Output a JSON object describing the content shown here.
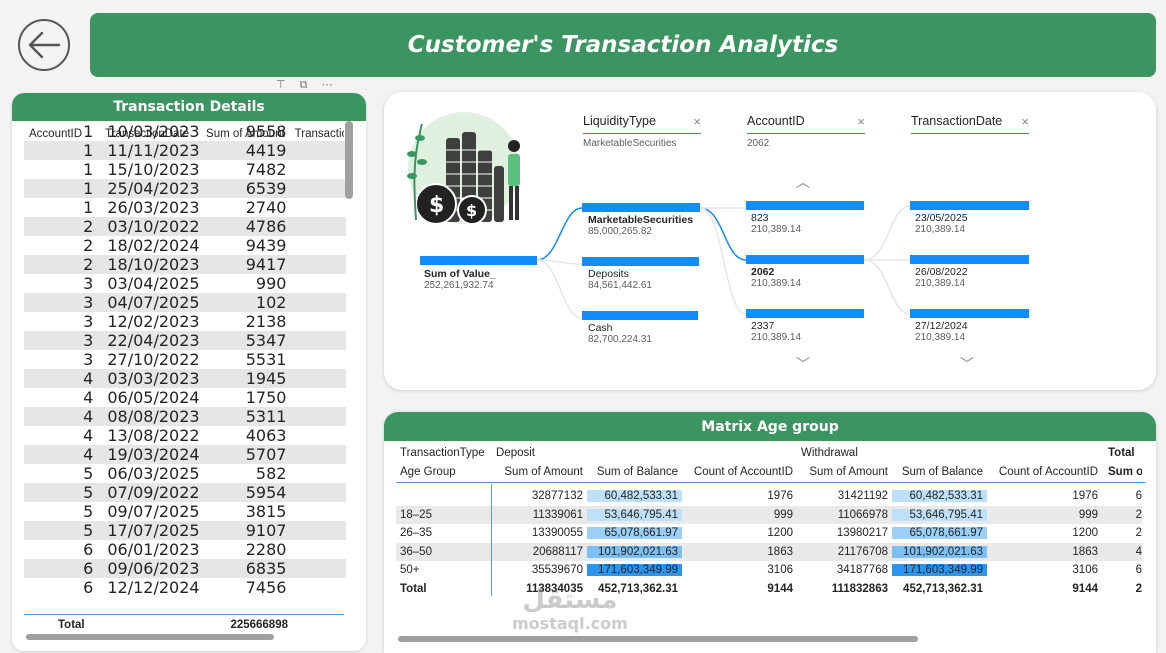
{
  "header": {
    "title": "Customer's Transaction Analytics"
  },
  "details": {
    "title": "Transaction Details",
    "columns": [
      "AccountID",
      "TransactionDate",
      "Sum of Amount",
      "Transaction"
    ],
    "rows": [
      [
        "1",
        "10/03/2023",
        "9558"
      ],
      [
        "1",
        "11/11/2023",
        "4419"
      ],
      [
        "1",
        "15/10/2023",
        "7482"
      ],
      [
        "1",
        "25/04/2023",
        "6539"
      ],
      [
        "1",
        "26/03/2023",
        "2740"
      ],
      [
        "2",
        "03/10/2022",
        "4786"
      ],
      [
        "2",
        "18/02/2024",
        "9439"
      ],
      [
        "2",
        "18/10/2023",
        "9417"
      ],
      [
        "3",
        "03/04/2025",
        "990"
      ],
      [
        "3",
        "04/07/2025",
        "102"
      ],
      [
        "3",
        "12/02/2023",
        "2138"
      ],
      [
        "3",
        "22/04/2023",
        "5347"
      ],
      [
        "3",
        "27/10/2022",
        "5531"
      ],
      [
        "4",
        "03/03/2023",
        "1945"
      ],
      [
        "4",
        "06/05/2024",
        "1750"
      ],
      [
        "4",
        "08/08/2023",
        "5311"
      ],
      [
        "4",
        "13/08/2022",
        "4063"
      ],
      [
        "4",
        "19/03/2024",
        "5707"
      ],
      [
        "5",
        "06/03/2025",
        "582"
      ],
      [
        "5",
        "07/09/2022",
        "5954"
      ],
      [
        "5",
        "09/07/2025",
        "3815"
      ],
      [
        "5",
        "17/07/2025",
        "9107"
      ],
      [
        "6",
        "06/01/2023",
        "2280"
      ],
      [
        "6",
        "09/06/2023",
        "6835"
      ],
      [
        "6",
        "12/12/2024",
        "7456"
      ]
    ],
    "total_label": "Total",
    "total_value": "225666898"
  },
  "decomp": {
    "root": {
      "label": "Sum of Value_",
      "value": "252,261,932.74"
    },
    "levels": [
      {
        "field": "LiquidityType",
        "filter": "MarketableSecurities",
        "nodes": [
          {
            "label": "MarketableSecurities",
            "value": "85,000,265.82",
            "bold": true
          },
          {
            "label": "Deposits",
            "value": "84,561,442.61"
          },
          {
            "label": "Cash",
            "value": "82,700,224.31"
          }
        ]
      },
      {
        "field": "AccountID",
        "filter": "2062",
        "nodes": [
          {
            "label": "823",
            "value": "210,389.14"
          },
          {
            "label": "2062",
            "value": "210,389.14",
            "bold": true
          },
          {
            "label": "2337",
            "value": "210,389.14"
          }
        ]
      },
      {
        "field": "TransactionDate",
        "filter": "",
        "nodes": [
          {
            "label": "23/05/2025",
            "value": "210,389.14"
          },
          {
            "label": "26/08/2022",
            "value": "210,389.14"
          },
          {
            "label": "27/12/2024",
            "value": "210,389.14"
          }
        ]
      }
    ],
    "close_glyph": "×"
  },
  "matrix": {
    "title": "Matrix Age group",
    "row_header_1": "TransactionType",
    "row_header_2": "Age Group",
    "groups": [
      "Deposit",
      "Withdrawal",
      "Total"
    ],
    "measures": [
      "Sum of Amount",
      "Sum of Balance",
      "Count of AccountID",
      "Sum of Amount",
      "Sum of Balance",
      "Count of AccountID",
      "Sum o"
    ],
    "rows": [
      [
        "",
        "32877132",
        "60,482,533.31",
        "1976",
        "31421192",
        "60,482,533.31",
        "1976",
        "6"
      ],
      [
        "18–25",
        "11339061",
        "53,646,795.41",
        "999",
        "11066978",
        "53,646,795.41",
        "999",
        "2"
      ],
      [
        "26–35",
        "13390055",
        "65,078,661.97",
        "1200",
        "13980217",
        "65,078,661.97",
        "1200",
        "2"
      ],
      [
        "36–50",
        "20688117",
        "101,902,021.63",
        "1863",
        "21176708",
        "101,902,021.63",
        "1863",
        "4"
      ],
      [
        "50+",
        "35539670",
        "171,603,349.99",
        "3106",
        "34187768",
        "171,603,349.99",
        "3106",
        "6"
      ]
    ],
    "total_row": [
      "Total",
      "113834035",
      "452,713,362.31",
      "9144",
      "111832863",
      "452,713,362.31",
      "9144",
      "2"
    ],
    "heat_levels": [
      1,
      1,
      2,
      3,
      4
    ]
  },
  "watermark": {
    "arabic": "مستقل",
    "latin": "mostaql.com"
  }
}
